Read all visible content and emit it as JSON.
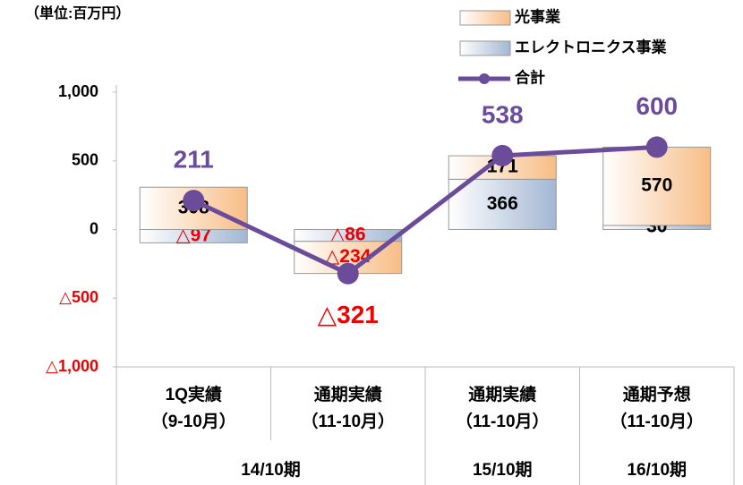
{
  "chart_data": {
    "type": "stacked-bar-line",
    "unit_label": "（単位:百万円）",
    "categories": [
      "1Q実績",
      "通期実績",
      "通期実績",
      "通期予想"
    ],
    "category_periods": [
      "（9-10月）",
      "（11-10月）",
      "（11-10月）",
      "（11-10月）"
    ],
    "groups": [
      {
        "label": "14/10期",
        "count": 2
      },
      {
        "label": "15/10期",
        "count": 1
      },
      {
        "label": "16/10期",
        "count": 1
      }
    ],
    "ylim": [
      -1000,
      1000
    ],
    "yticks": [
      {
        "value": 1000,
        "label": "1,000"
      },
      500,
      0,
      {
        "value": -500,
        "label": "△500"
      },
      {
        "value": -1000,
        "label": "△1,000"
      }
    ],
    "series": [
      {
        "name": "光事業",
        "color": "#f8bd86",
        "values": [
          308,
          -234,
          171,
          570
        ],
        "value_labels": [
          "308",
          "△234",
          "171",
          "570"
        ]
      },
      {
        "name": "エレクトロニクス事業",
        "color": "#a3b7d3",
        "values": [
          -97,
          -86,
          366,
          30
        ],
        "value_labels": [
          "△97",
          "△86",
          "366",
          "30"
        ]
      },
      {
        "name": "合計",
        "type": "line",
        "color": "#6b4c9a",
        "values": [
          211,
          -321,
          538,
          600
        ],
        "value_labels": [
          "211",
          "△321",
          "538",
          "600"
        ]
      }
    ]
  }
}
